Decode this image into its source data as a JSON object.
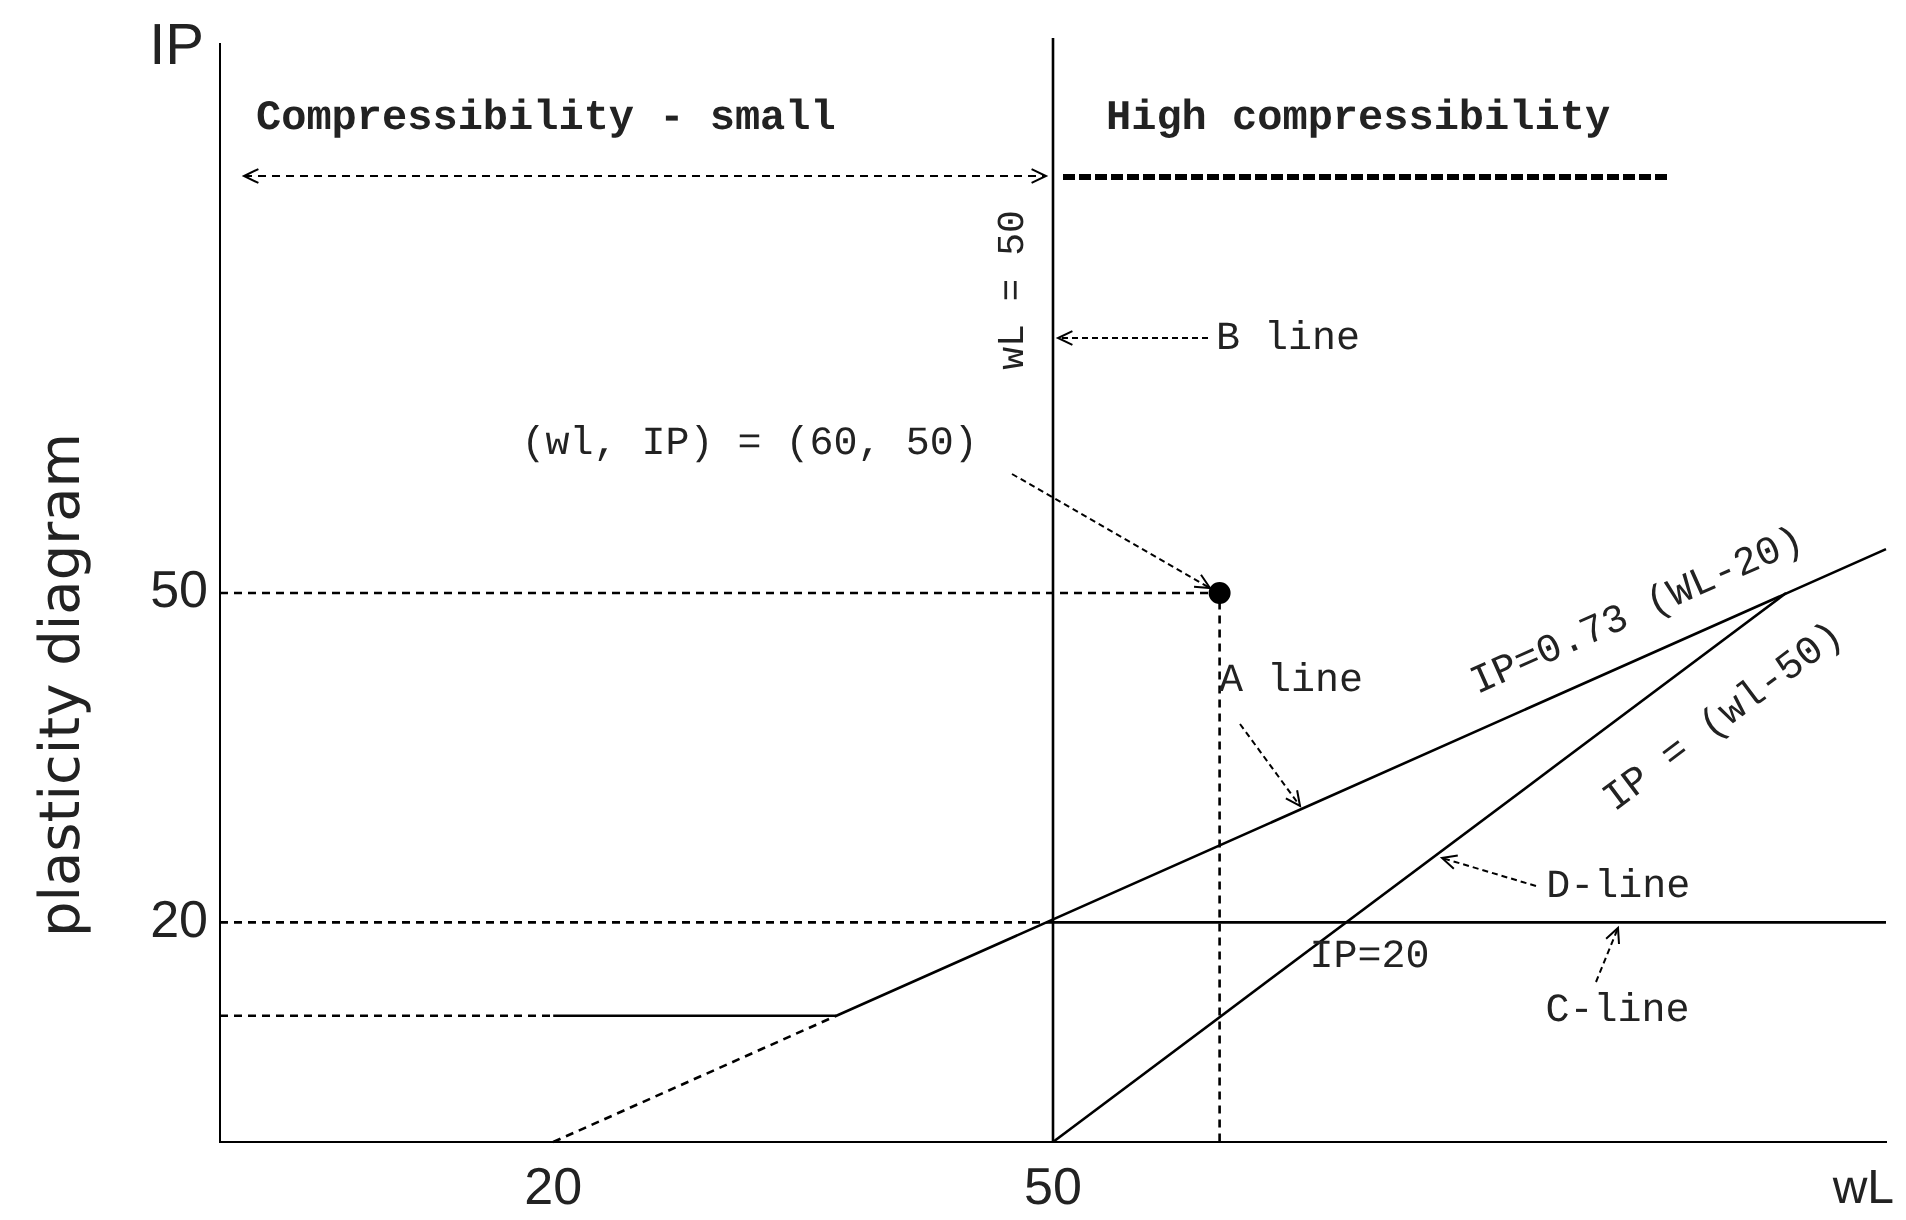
{
  "chart_data": {
    "type": "line",
    "title": "plasticity diagram",
    "xlabel": "wL",
    "ylabel": "IP",
    "xlim": [
      0,
      100
    ],
    "ylim": [
      0,
      100
    ],
    "xticks": [
      20,
      50
    ],
    "yticks": [
      20,
      50
    ],
    "grid": false,
    "legend": false,
    "marker": "none",
    "line_style": "solid",
    "series": [
      {
        "name": "IP=0.73 (WL-20)",
        "color": "#000000",
        "x": [
          20,
          37,
          100
        ],
        "values": [
          11.5,
          11.5,
          54
        ]
      },
      {
        "name": "IP = (wl-50)",
        "color": "#000000",
        "x": [
          50,
          94
        ],
        "values": [
          0,
          50
        ]
      },
      {
        "name": "IP=20",
        "color": "#000000",
        "x": [
          50,
          100
        ],
        "values": [
          20,
          20
        ]
      },
      {
        "type": "scatter",
        "marker": "circle",
        "color": "#000000",
        "x": [
          60
        ],
        "values": [
          50
        ]
      },
      {
        "color": "#000000",
        "line_style": "dashed",
        "x": [
          20,
          37
        ],
        "values": [
          0,
          11.5
        ]
      },
      {
        "color": "#000000",
        "line_style": "dashed",
        "x": [
          0,
          20
        ],
        "values": [
          11.5,
          11.5
        ]
      },
      {
        "color": "#000000",
        "line_style": "dashed",
        "x": [
          0,
          50
        ],
        "values": [
          20,
          20
        ]
      },
      {
        "color": "#000000",
        "line_style": "dashed",
        "x": [
          0,
          60,
          60
        ],
        "values": [
          50,
          50,
          0
        ]
      }
    ],
    "ref_lines": [
      {
        "axis": "x",
        "value": 50,
        "label": "wL = 50"
      }
    ],
    "annotations": [
      "Compressibility - small",
      "High compressibility",
      {
        "text": "(wl, IP) = (60, 50)",
        "x": 60,
        "y": 50
      },
      "B line",
      {
        "text": "A line",
        "x": 65,
        "y": 30
      },
      {
        "text": "D-line",
        "x": 73,
        "y": 26
      },
      {
        "text": "C-line",
        "x": 84,
        "y": 20
      }
    ]
  }
}
